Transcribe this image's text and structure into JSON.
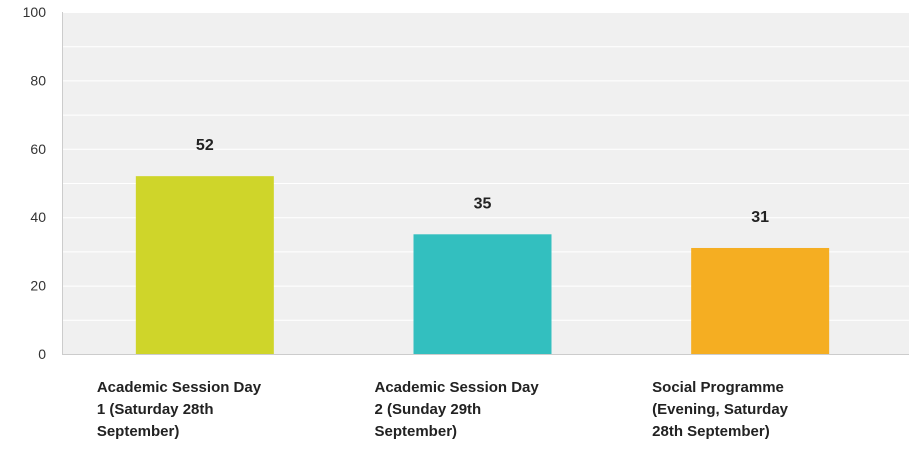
{
  "chart_data": {
    "type": "bar",
    "categories": [
      [
        "Academic Session Day",
        "1 (Saturday 28th",
        "September)"
      ],
      [
        "Academic Session Day",
        "2 (Sunday 29th",
        "September)"
      ],
      [
        "Social Programme",
        "(Evening, Saturday",
        "28th September)"
      ]
    ],
    "values": [
      52,
      35,
      31
    ],
    "value_labels": [
      "52",
      "35",
      "31"
    ],
    "colors": [
      "#cfd52a",
      "#33bfbf",
      "#f5ae22"
    ],
    "ylim": [
      0,
      100
    ],
    "yticks": [
      0,
      20,
      40,
      60,
      80,
      100
    ],
    "ytick_labels": [
      "0",
      "20",
      "40",
      "60",
      "80",
      "100"
    ],
    "grid": true,
    "background_color": "#f0f0f0",
    "grid_color": "#ffffff",
    "title": "",
    "xlabel": "",
    "ylabel": ""
  }
}
